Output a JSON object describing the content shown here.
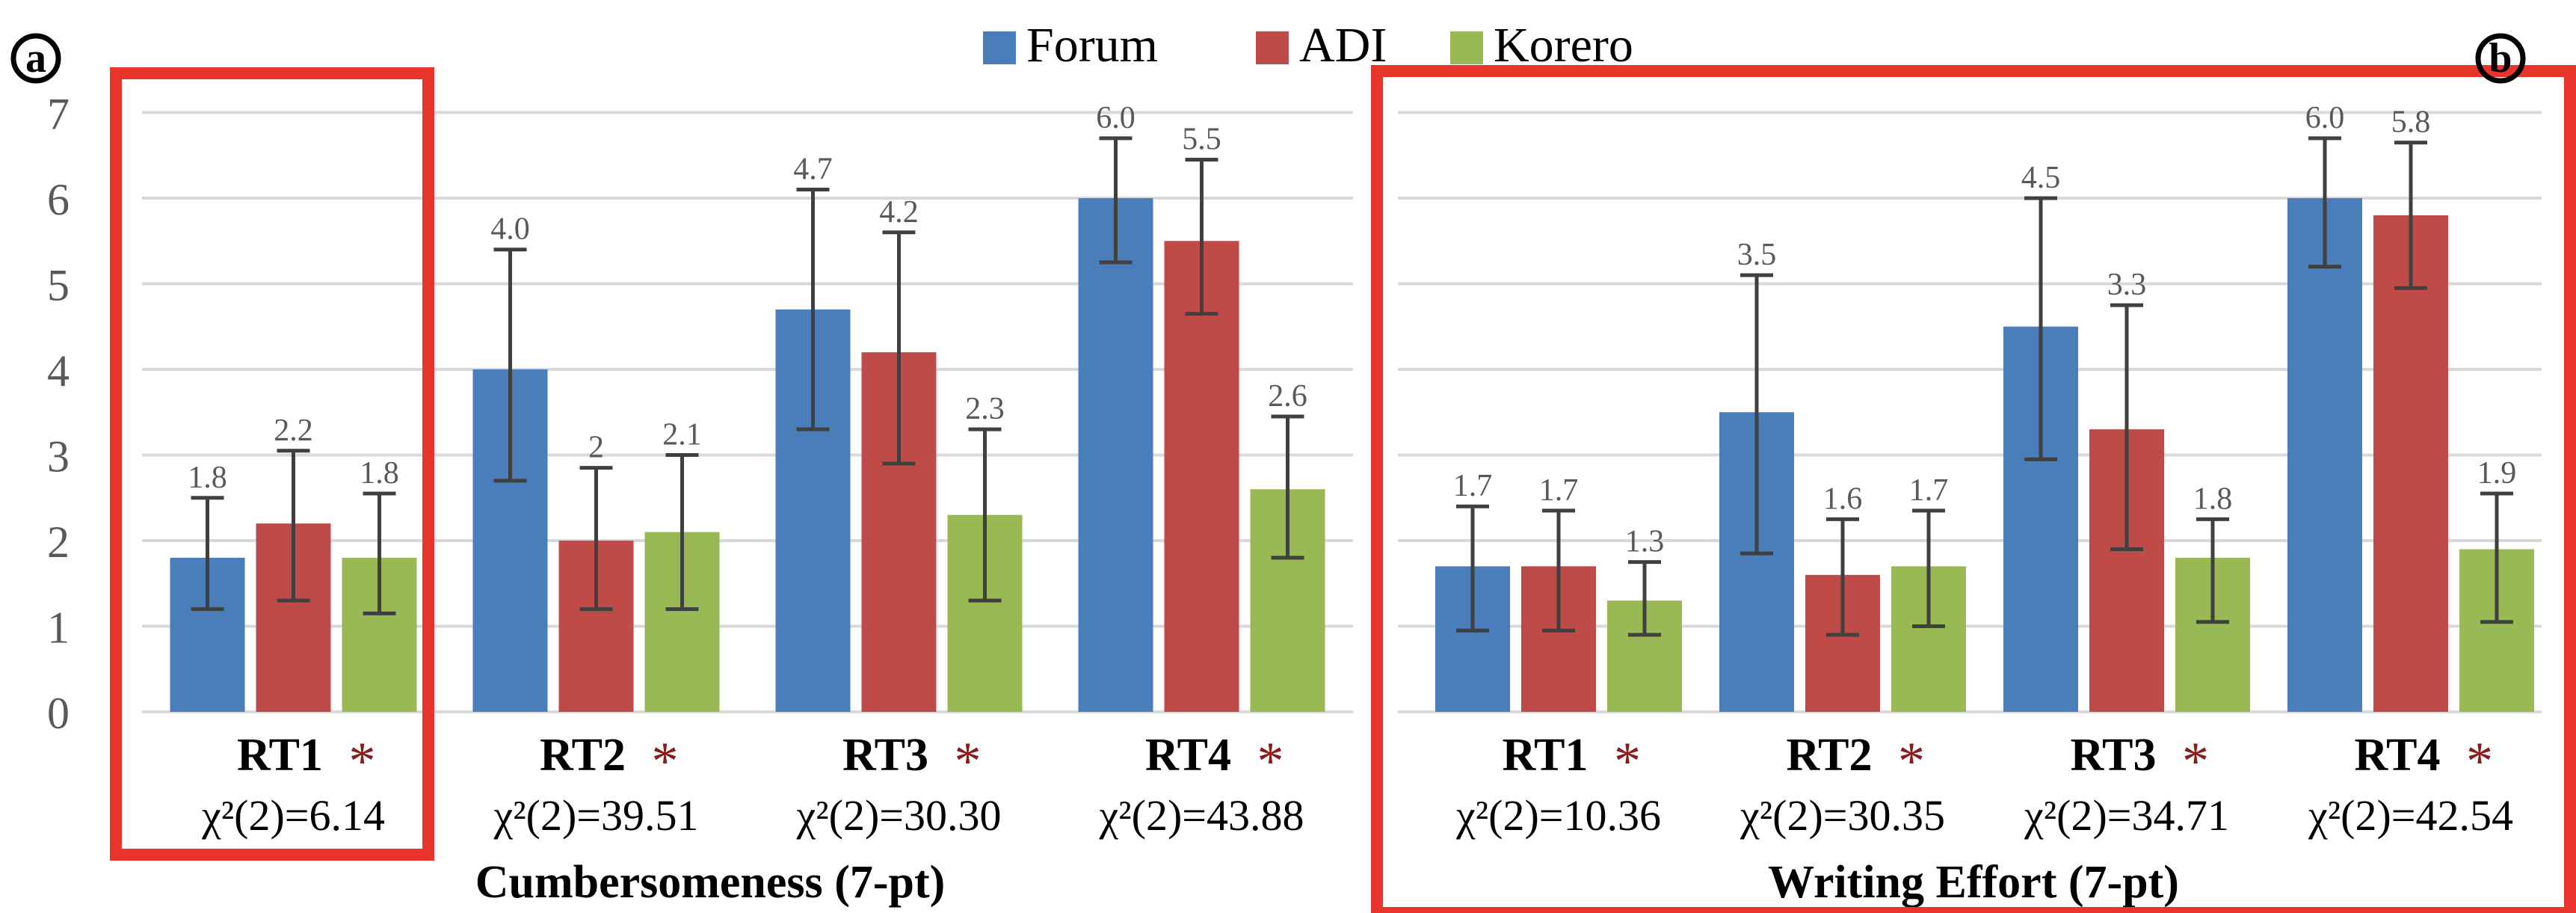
{
  "panel_labels": [
    "a",
    "b"
  ],
  "legend": [
    {
      "label": "Forum",
      "color": "#4a7ebb"
    },
    {
      "label": "ADI",
      "color": "#be4b48"
    },
    {
      "label": "Korero",
      "color": "#98b954"
    }
  ],
  "colors": {
    "forum": "#4a7ebb",
    "adi": "#be4b48",
    "korero": "#98b954",
    "highlight": "#e8342a",
    "star": "#8b1a1a",
    "grid": "#d9d9d9",
    "errorbar": "#404040",
    "value_label": "#595959"
  },
  "chart_data": [
    {
      "type": "bar",
      "title": "Cumbersomeness (7-pt)",
      "ylim": [
        0,
        7
      ],
      "yticks": [
        "0",
        "1",
        "2",
        "3",
        "4",
        "5",
        "6",
        "7"
      ],
      "show_y_tick_labels": true,
      "grid": true,
      "legend_position": "top",
      "categories": [
        "RT1",
        "RT2",
        "RT3",
        "RT4"
      ],
      "stats": [
        "χ²(2)=6.14",
        "χ²(2)=39.51",
        "χ²(2)=30.30",
        "χ²(2)=43.88"
      ],
      "significance": [
        "*",
        "*",
        "*",
        "*"
      ],
      "highlighted_categories": [
        "RT1"
      ],
      "series": [
        {
          "name": "Forum",
          "values": [
            1.8,
            4.0,
            4.7,
            6.0
          ],
          "labels": [
            "1.8",
            "4.0",
            "4.7",
            "6.0"
          ],
          "err_low": [
            1.2,
            2.7,
            3.3,
            5.25
          ],
          "err_high": [
            2.5,
            5.4,
            6.1,
            6.7
          ]
        },
        {
          "name": "ADI",
          "values": [
            2.2,
            2.0,
            4.2,
            5.5
          ],
          "labels": [
            "2.2",
            "2",
            "4.2",
            "5.5"
          ],
          "err_low": [
            1.3,
            1.2,
            2.9,
            4.65
          ],
          "err_high": [
            3.05,
            2.85,
            5.6,
            6.45
          ]
        },
        {
          "name": "Korero",
          "values": [
            1.8,
            2.1,
            2.3,
            2.6
          ],
          "labels": [
            "1.8",
            "2.1",
            "2.3",
            "2.6"
          ],
          "err_low": [
            1.15,
            1.2,
            1.3,
            1.8
          ],
          "err_high": [
            2.55,
            3.0,
            3.3,
            3.45
          ]
        }
      ]
    },
    {
      "type": "bar",
      "title": "Writing Effort (7-pt)",
      "ylim": [
        0,
        7
      ],
      "yticks": [],
      "show_y_tick_labels": false,
      "grid": true,
      "legend_position": "top",
      "categories": [
        "RT1",
        "RT2",
        "RT3",
        "RT4"
      ],
      "stats": [
        "χ²(2)=10.36",
        "χ²(2)=30.35",
        "χ²(2)=34.71",
        "χ²(2)=42.54"
      ],
      "significance": [
        "*",
        "*",
        "*",
        "*"
      ],
      "highlighted_categories": [],
      "series": [
        {
          "name": "Forum",
          "values": [
            1.7,
            3.5,
            4.5,
            6.0
          ],
          "labels": [
            "1.7",
            "3.5",
            "4.5",
            "6.0"
          ],
          "err_low": [
            0.95,
            1.85,
            2.95,
            5.2
          ],
          "err_high": [
            2.4,
            5.1,
            6.0,
            6.7
          ]
        },
        {
          "name": "ADI",
          "values": [
            1.7,
            1.6,
            3.3,
            5.8
          ],
          "labels": [
            "1.7",
            "1.6",
            "3.3",
            "5.8"
          ],
          "err_low": [
            0.95,
            0.9,
            1.9,
            4.95
          ],
          "err_high": [
            2.35,
            2.25,
            4.75,
            6.65
          ]
        },
        {
          "name": "Korero",
          "values": [
            1.3,
            1.7,
            1.8,
            1.9
          ],
          "labels": [
            "1.3",
            "1.7",
            "1.8",
            "1.9"
          ],
          "err_low": [
            0.9,
            1.0,
            1.05,
            1.05
          ],
          "err_high": [
            1.75,
            2.35,
            2.25,
            2.55
          ]
        }
      ]
    }
  ]
}
